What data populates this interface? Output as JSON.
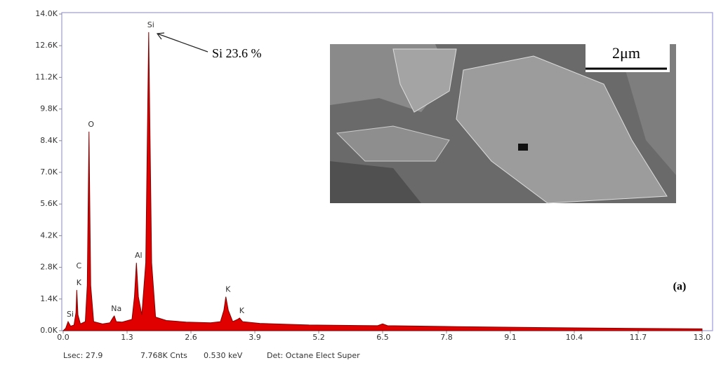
{
  "chart_data": {
    "type": "area",
    "x": [
      0.0,
      0.05,
      0.1,
      0.15,
      0.22,
      0.26,
      0.277,
      0.3,
      0.35,
      0.45,
      0.49,
      0.525,
      0.56,
      0.62,
      0.8,
      0.95,
      1.02,
      1.04,
      1.08,
      1.2,
      1.4,
      1.45,
      1.49,
      1.53,
      1.6,
      1.68,
      1.74,
      1.8,
      1.88,
      2.1,
      2.5,
      3.0,
      3.2,
      3.27,
      3.31,
      3.36,
      3.45,
      3.55,
      3.59,
      3.65,
      4.0,
      5.0,
      6.4,
      6.5,
      6.6,
      8.0,
      10.0,
      13.0
    ],
    "series": [
      {
        "color": "#e00000",
        "values": [
          0,
          100,
          400,
          200,
          250,
          800,
          1800,
          700,
          300,
          400,
          2000,
          8800,
          2000,
          400,
          300,
          350,
          600,
          650,
          400,
          380,
          500,
          1500,
          3000,
          1500,
          700,
          3000,
          13200,
          3000,
          600,
          450,
          380,
          350,
          400,
          900,
          1500,
          900,
          400,
          500,
          560,
          400,
          320,
          250,
          220,
          300,
          220,
          180,
          130,
          80
        ]
      }
    ],
    "xlim": [
      0,
      13
    ],
    "ylim": [
      0,
      14000
    ],
    "xticks": [
      {
        "value": 0,
        "label": "0.0"
      },
      1.3,
      2.6,
      3.9,
      5.2,
      6.5,
      7.8,
      9.1,
      10.4,
      11.7,
      {
        "value": 13,
        "label": "13.0"
      }
    ],
    "yticks": [
      {
        "value": 0,
        "label": "0.0K"
      },
      {
        "value": 1400,
        "label": "1.4K"
      },
      {
        "value": 2800,
        "label": "2.8K"
      },
      {
        "value": 4200,
        "label": "4.2K"
      },
      {
        "value": 5600,
        "label": "5.6K"
      },
      {
        "value": 7000,
        "label": "7.0K"
      },
      {
        "value": 8400,
        "label": "8.4K"
      },
      {
        "value": 9800,
        "label": "9.8K"
      },
      {
        "value": 11200,
        "label": "11.2K"
      },
      {
        "value": 12600,
        "label": "12.6K"
      },
      {
        "value": 14000,
        "label": "14.0K"
      }
    ],
    "peak_labels": [
      {
        "text": "Si",
        "x": 0.1
      },
      {
        "text": "K",
        "x": 0.277
      },
      {
        "text": "C",
        "x": 0.277
      },
      {
        "text": "O",
        "x": 0.525
      },
      {
        "text": "Na",
        "x": 1.04
      },
      {
        "text": "Al",
        "x": 1.49
      },
      {
        "text": "Si",
        "x": 1.74
      },
      {
        "text": "K",
        "x": 3.31
      },
      {
        "text": "K",
        "x": 3.59
      }
    ],
    "annotation": "Si 23.6 %",
    "panel_label": "(a)",
    "inset_scale": "2μm",
    "status": [
      "Lsec: 27.9",
      "7.768K Cnts",
      "0.530 keV",
      "Det: Octane Elect Super"
    ]
  }
}
